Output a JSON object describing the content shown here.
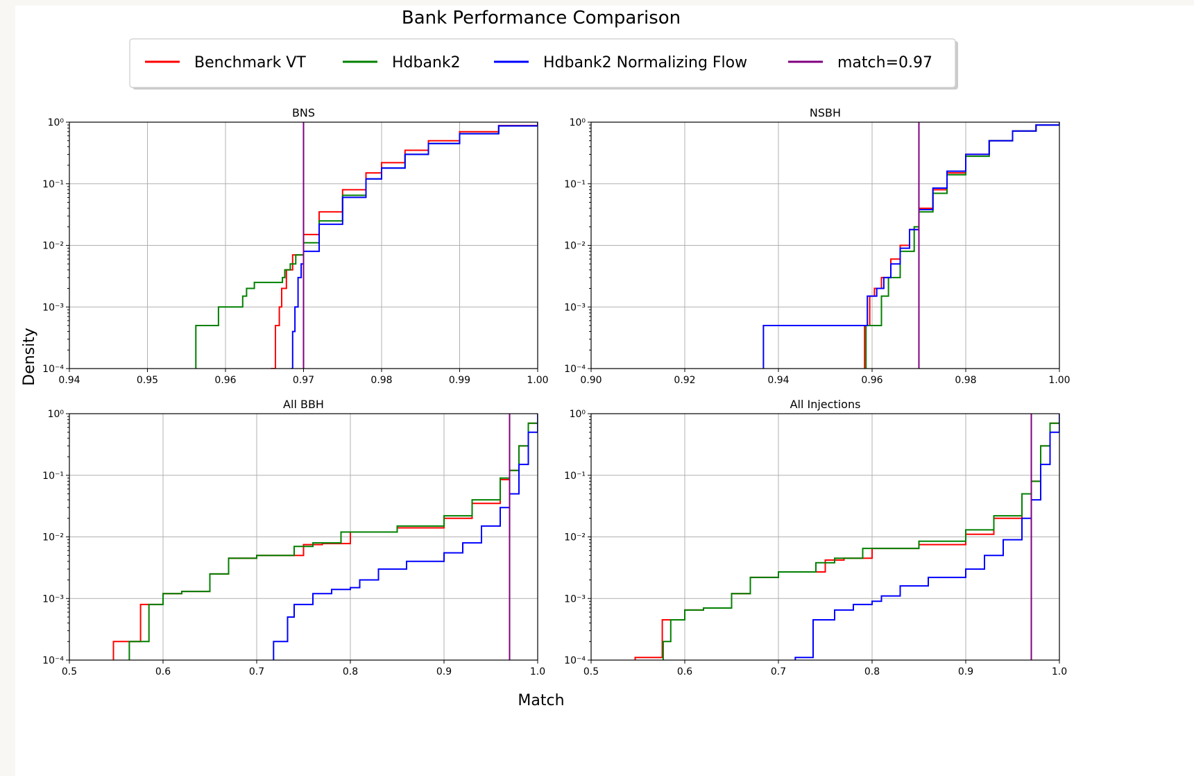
{
  "figure": {
    "title": "Bank Performance Comparison",
    "xlabel": "Match",
    "ylabel": "Density"
  },
  "legend": {
    "placement": "top-center",
    "entries": [
      {
        "label": "Benchmark VT",
        "color": "#ff0000"
      },
      {
        "label": "Hdbank2",
        "color": "#008000"
      },
      {
        "label": "Hdbank2 Normalizing Flow",
        "color": "#0000ff"
      },
      {
        "label": "match=0.97",
        "color": "#800080"
      }
    ]
  },
  "chart_data": [
    {
      "type": "line",
      "title": "BNS",
      "yscale": "log",
      "xlim": [
        0.94,
        1.0
      ],
      "ylim": [
        0.0001,
        1
      ],
      "xticks": [
        "0.94",
        "0.95",
        "0.96",
        "0.97",
        "0.98",
        "0.99",
        "1.00"
      ],
      "yticks": [
        "10⁻⁴",
        "10⁻³",
        "10⁻²",
        "10⁻¹",
        "10⁰"
      ],
      "grid": true,
      "vline": 0.97,
      "series": [
        {
          "name": "Benchmark VT",
          "color": "#ff0000",
          "x": [
            0.9658,
            0.9664,
            0.9669,
            0.9672,
            0.9678,
            0.9686,
            0.97,
            0.972,
            0.975,
            0.978,
            0.98,
            0.983,
            0.986,
            0.99,
            0.995,
            1.0
          ],
          "y": [
            0.0001,
            0.0005,
            0.001,
            0.002,
            0.004,
            0.007,
            0.015,
            0.035,
            0.08,
            0.15,
            0.22,
            0.35,
            0.5,
            0.7,
            0.88,
            1.0
          ]
        },
        {
          "name": "Hdbank2",
          "color": "#008000",
          "x": [
            0.9562,
            0.9562,
            0.9591,
            0.9622,
            0.9627,
            0.9637,
            0.9673,
            0.9676,
            0.9683,
            0.969,
            0.97,
            0.972,
            0.975,
            0.978,
            0.98,
            0.983,
            0.986,
            0.99,
            0.995,
            1.0
          ],
          "y": [
            0.0001,
            0.0005,
            0.001,
            0.0015,
            0.002,
            0.0025,
            0.003,
            0.004,
            0.005,
            0.007,
            0.011,
            0.025,
            0.065,
            0.12,
            0.18,
            0.3,
            0.45,
            0.65,
            0.87,
            1.0
          ]
        },
        {
          "name": "Hdbank2 Normalizing Flow",
          "color": "#0000ff",
          "x": [
            0.9684,
            0.9686,
            0.9689,
            0.9693,
            0.9697,
            0.97,
            0.972,
            0.975,
            0.978,
            0.98,
            0.983,
            0.986,
            0.99,
            0.995,
            1.0
          ],
          "y": [
            0.0001,
            0.0004,
            0.001,
            0.003,
            0.005,
            0.008,
            0.022,
            0.06,
            0.12,
            0.18,
            0.3,
            0.45,
            0.65,
            0.87,
            1.0
          ]
        }
      ]
    },
    {
      "type": "line",
      "title": "NSBH",
      "yscale": "log",
      "xlim": [
        0.9,
        1.0
      ],
      "ylim": [
        0.0001,
        1
      ],
      "xticks": [
        "0.90",
        "0.92",
        "0.94",
        "0.96",
        "0.98",
        "1.00"
      ],
      "yticks": [
        "10⁻⁴",
        "10⁻³",
        "10⁻²",
        "10⁻¹",
        "10⁰"
      ],
      "grid": true,
      "vline": 0.97,
      "series": [
        {
          "name": "Benchmark VT",
          "color": "#ff0000",
          "x": [
            0.9584,
            0.9584,
            0.9595,
            0.9605,
            0.962,
            0.964,
            0.966,
            0.968,
            0.97,
            0.973,
            0.976,
            0.98,
            0.985,
            0.99,
            0.995,
            1.0
          ],
          "y": [
            0.0001,
            0.0005,
            0.0015,
            0.002,
            0.003,
            0.006,
            0.01,
            0.018,
            0.04,
            0.08,
            0.15,
            0.3,
            0.5,
            0.72,
            0.9,
            1.0
          ]
        },
        {
          "name": "Hdbank2",
          "color": "#008000",
          "x": [
            0.9587,
            0.9587,
            0.961,
            0.962,
            0.9635,
            0.966,
            0.969,
            0.97,
            0.973,
            0.976,
            0.98,
            0.985,
            0.99,
            0.995,
            1.0
          ],
          "y": [
            0.0001,
            0.0005,
            0.0005,
            0.0015,
            0.003,
            0.008,
            0.02,
            0.035,
            0.07,
            0.14,
            0.28,
            0.5,
            0.72,
            0.9,
            1.0
          ]
        },
        {
          "name": "Hdbank2 Normalizing Flow",
          "color": "#0000ff",
          "x": [
            0.9368,
            0.9368,
            0.959,
            0.959,
            0.961,
            0.9625,
            0.964,
            0.966,
            0.968,
            0.97,
            0.973,
            0.976,
            0.98,
            0.985,
            0.99,
            0.995,
            1.0
          ],
          "y": [
            0.0001,
            0.0005,
            0.0005,
            0.0015,
            0.002,
            0.003,
            0.005,
            0.009,
            0.018,
            0.038,
            0.085,
            0.16,
            0.3,
            0.5,
            0.72,
            0.9,
            1.0
          ]
        }
      ]
    },
    {
      "type": "line",
      "title": "All BBH",
      "yscale": "log",
      "xlim": [
        0.5,
        1.0
      ],
      "ylim": [
        0.0001,
        1
      ],
      "xticks": [
        "0.5",
        "0.6",
        "0.7",
        "0.8",
        "0.9",
        "1.0"
      ],
      "yticks": [
        "10⁻⁴",
        "10⁻³",
        "10⁻²",
        "10⁻¹",
        "10⁰"
      ],
      "grid": true,
      "vline": 0.97,
      "series": [
        {
          "name": "Benchmark VT",
          "color": "#ff0000",
          "x": [
            0.547,
            0.547,
            0.573,
            0.576,
            0.59,
            0.6,
            0.62,
            0.65,
            0.67,
            0.7,
            0.75,
            0.77,
            0.8,
            0.85,
            0.9,
            0.93,
            0.96,
            0.97,
            0.98,
            0.99,
            1.0
          ],
          "y": [
            0.0001,
            0.0002,
            0.0002,
            0.0008,
            0.0008,
            0.0012,
            0.0013,
            0.0025,
            0.0045,
            0.005,
            0.0075,
            0.0078,
            0.012,
            0.014,
            0.02,
            0.035,
            0.085,
            0.12,
            0.3,
            0.7,
            1.0
          ]
        },
        {
          "name": "Hdbank2",
          "color": "#008000",
          "x": [
            0.564,
            0.564,
            0.58,
            0.585,
            0.6,
            0.62,
            0.65,
            0.67,
            0.7,
            0.74,
            0.76,
            0.79,
            0.85,
            0.9,
            0.93,
            0.96,
            0.97,
            0.98,
            0.99,
            1.0
          ],
          "y": [
            0.0001,
            0.0002,
            0.0002,
            0.0008,
            0.0012,
            0.0013,
            0.0025,
            0.0045,
            0.005,
            0.007,
            0.008,
            0.012,
            0.015,
            0.022,
            0.04,
            0.09,
            0.12,
            0.3,
            0.7,
            1.0
          ]
        },
        {
          "name": "Hdbank2 Normalizing Flow",
          "color": "#0000ff",
          "x": [
            0.718,
            0.718,
            0.733,
            0.74,
            0.76,
            0.78,
            0.8,
            0.81,
            0.83,
            0.86,
            0.9,
            0.92,
            0.94,
            0.96,
            0.97,
            0.98,
            0.99,
            1.0
          ],
          "y": [
            0.0001,
            0.0002,
            0.0005,
            0.0008,
            0.0012,
            0.0014,
            0.0015,
            0.002,
            0.003,
            0.004,
            0.0055,
            0.008,
            0.015,
            0.03,
            0.05,
            0.15,
            0.5,
            1.0
          ]
        }
      ]
    },
    {
      "type": "line",
      "title": "All Injections",
      "yscale": "log",
      "xlim": [
        0.5,
        1.0
      ],
      "ylim": [
        0.0001,
        1
      ],
      "xticks": [
        "0.5",
        "0.6",
        "0.7",
        "0.8",
        "0.9",
        "1.0"
      ],
      "yticks": [
        "10⁻⁴",
        "10⁻³",
        "10⁻²",
        "10⁻¹",
        "10⁰"
      ],
      "grid": true,
      "vline": 0.97,
      "series": [
        {
          "name": "Benchmark VT",
          "color": "#ff0000",
          "x": [
            0.547,
            0.547,
            0.573,
            0.576,
            0.59,
            0.6,
            0.62,
            0.65,
            0.67,
            0.7,
            0.75,
            0.77,
            0.8,
            0.85,
            0.9,
            0.93,
            0.96,
            0.97,
            0.98,
            0.99,
            1.0
          ],
          "y": [
            0.0001,
            0.00011,
            0.00011,
            0.00045,
            0.00045,
            0.00065,
            0.0007,
            0.0012,
            0.0022,
            0.0027,
            0.0042,
            0.0045,
            0.0065,
            0.0075,
            0.011,
            0.02,
            0.05,
            0.08,
            0.3,
            0.7,
            1.0
          ]
        },
        {
          "name": "Hdbank2",
          "color": "#008000",
          "x": [
            0.577,
            0.577,
            0.585,
            0.59,
            0.6,
            0.62,
            0.65,
            0.67,
            0.7,
            0.74,
            0.76,
            0.79,
            0.85,
            0.9,
            0.93,
            0.96,
            0.97,
            0.98,
            0.99,
            1.0
          ],
          "y": [
            0.0001,
            0.0002,
            0.00045,
            0.00045,
            0.00065,
            0.0007,
            0.0012,
            0.0022,
            0.0027,
            0.0038,
            0.0045,
            0.0065,
            0.0085,
            0.013,
            0.022,
            0.05,
            0.08,
            0.3,
            0.7,
            1.0
          ]
        },
        {
          "name": "Hdbank2 Normalizing Flow",
          "color": "#0000ff",
          "x": [
            0.718,
            0.718,
            0.737,
            0.74,
            0.76,
            0.78,
            0.8,
            0.81,
            0.83,
            0.86,
            0.9,
            0.92,
            0.94,
            0.96,
            0.97,
            0.98,
            0.99,
            1.0
          ],
          "y": [
            0.0001,
            0.00011,
            0.00045,
            0.00045,
            0.00065,
            0.0008,
            0.0009,
            0.0011,
            0.0016,
            0.0022,
            0.003,
            0.005,
            0.009,
            0.02,
            0.04,
            0.15,
            0.5,
            1.0
          ]
        }
      ]
    }
  ]
}
